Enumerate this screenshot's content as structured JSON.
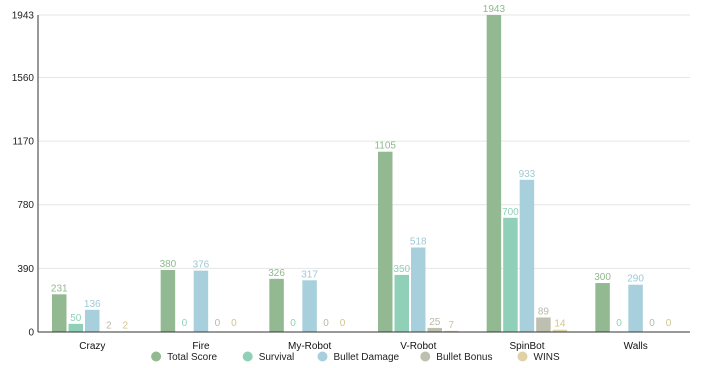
{
  "chart_data": {
    "type": "bar",
    "categories": [
      "Crazy",
      "Fire",
      "My-Robot",
      "V-Robot",
      "SpinBot",
      "Walls"
    ],
    "y_ticks": [
      0,
      390,
      780,
      1170,
      1560,
      1943
    ],
    "ylim": [
      0,
      1943
    ],
    "grid": true,
    "legend_position": "bottom",
    "series": [
      {
        "name": "Total Score",
        "color": "#93b993",
        "label_color": "#8fb98f",
        "values": [
          231,
          380,
          326,
          1105,
          1943,
          300
        ]
      },
      {
        "name": "Survival",
        "color": "#90d0b8",
        "label_color": "#8fd1b9",
        "values": [
          50,
          0,
          0,
          350,
          700,
          0
        ]
      },
      {
        "name": "Bullet Damage",
        "color": "#a8d0dc",
        "label_color": "#9fc9d6",
        "values": [
          136,
          376,
          317,
          518,
          933,
          290
        ]
      },
      {
        "name": "Bullet Bonus",
        "color": "#bfbfb0",
        "label_color": "#b9b9aa",
        "values": [
          2,
          0,
          0,
          25,
          89,
          0
        ]
      },
      {
        "name": "WINS",
        "color": "#e0d2a8",
        "label_color": "#d2c48c",
        "values": [
          2,
          0,
          0,
          7,
          14,
          0
        ]
      }
    ]
  }
}
